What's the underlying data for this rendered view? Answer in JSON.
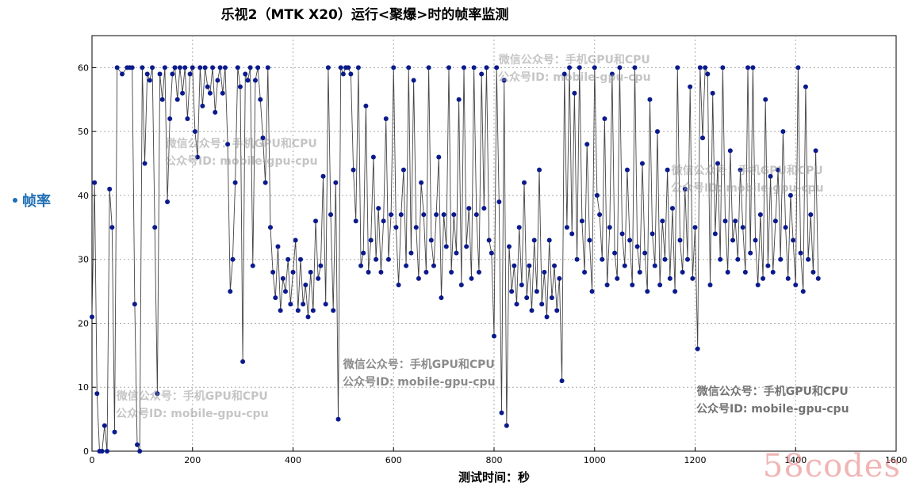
{
  "chart_data": {
    "type": "line",
    "title": "乐视2（MTK X20）运行<聚爆>时的帧率监测",
    "xlabel": "测试时间：秒",
    "legend": {
      "label": "帧率",
      "placement": "left"
    },
    "xlim": [
      0,
      1600
    ],
    "ylim": [
      0,
      65
    ],
    "xticks": [
      0,
      200,
      400,
      600,
      800,
      1000,
      1200,
      1400,
      1600
    ],
    "yticks": [
      0,
      10,
      20,
      30,
      40,
      50,
      60
    ],
    "grid": true,
    "marker": "circle",
    "line_color": "#444444",
    "marker_color": "#0a1a8c",
    "series": [
      {
        "name": "帧率",
        "x": [
          0,
          5,
          10,
          15,
          20,
          25,
          30,
          35,
          40,
          45,
          50,
          60,
          70,
          75,
          80,
          85,
          90,
          95,
          100,
          105,
          110,
          115,
          120,
          125,
          130,
          135,
          140,
          145,
          150,
          155,
          160,
          165,
          170,
          175,
          180,
          185,
          190,
          195,
          200,
          205,
          210,
          215,
          220,
          225,
          230,
          235,
          240,
          245,
          250,
          255,
          260,
          265,
          270,
          275,
          280,
          285,
          290,
          295,
          300,
          305,
          310,
          315,
          320,
          325,
          330,
          335,
          340,
          345,
          350,
          355,
          360,
          365,
          370,
          375,
          380,
          385,
          390,
          395,
          400,
          405,
          410,
          415,
          420,
          425,
          430,
          435,
          440,
          445,
          450,
          455,
          460,
          465,
          470,
          475,
          480,
          485,
          490,
          495,
          500,
          505,
          510,
          515,
          520,
          525,
          530,
          535,
          540,
          545,
          550,
          555,
          560,
          565,
          570,
          575,
          580,
          585,
          590,
          595,
          600,
          605,
          610,
          615,
          620,
          625,
          630,
          635,
          640,
          645,
          650,
          655,
          660,
          665,
          670,
          675,
          680,
          685,
          690,
          695,
          700,
          705,
          710,
          715,
          720,
          725,
          730,
          735,
          740,
          745,
          750,
          755,
          760,
          765,
          770,
          775,
          780,
          785,
          790,
          795,
          800,
          805,
          810,
          815,
          820,
          825,
          830,
          835,
          840,
          845,
          850,
          855,
          860,
          865,
          870,
          875,
          880,
          885,
          890,
          895,
          900,
          905,
          910,
          915,
          920,
          925,
          930,
          935,
          940,
          945,
          950,
          955,
          960,
          965,
          970,
          975,
          980,
          985,
          990,
          995,
          1000,
          1005,
          1010,
          1015,
          1020,
          1025,
          1030,
          1035,
          1040,
          1045,
          1050,
          1055,
          1060,
          1065,
          1070,
          1075,
          1080,
          1085,
          1090,
          1095,
          1100,
          1105,
          1110,
          1115,
          1120,
          1125,
          1130,
          1135,
          1140,
          1145,
          1150,
          1155,
          1160,
          1165,
          1170,
          1175,
          1180,
          1185,
          1190,
          1195,
          1200,
          1205,
          1210,
          1215,
          1220,
          1225,
          1230,
          1235,
          1240,
          1245,
          1250,
          1255,
          1260,
          1265,
          1270,
          1275,
          1280,
          1285,
          1290,
          1295,
          1300,
          1305,
          1310,
          1315,
          1320,
          1325,
          1330,
          1335,
          1340,
          1345,
          1350,
          1355,
          1360,
          1365,
          1370,
          1375,
          1380,
          1385,
          1390,
          1395,
          1400,
          1405,
          1410,
          1415,
          1420,
          1425,
          1430,
          1435,
          1440,
          1445
        ],
        "y": [
          21,
          42,
          9,
          0,
          0,
          4,
          0,
          41,
          35,
          3,
          60,
          59,
          60,
          60,
          60,
          23,
          1,
          0,
          60,
          45,
          59,
          58,
          60,
          35,
          9,
          59,
          55,
          60,
          39,
          52,
          59,
          60,
          55,
          60,
          56,
          60,
          52,
          59,
          60,
          50,
          46,
          60,
          54,
          60,
          57,
          56,
          60,
          53,
          58,
          60,
          56,
          60,
          48,
          25,
          30,
          42,
          60,
          57,
          14,
          59,
          58,
          60,
          29,
          58,
          60,
          55,
          49,
          42,
          60,
          35,
          28,
          24,
          32,
          22,
          27,
          25,
          30,
          23,
          28,
          33,
          22,
          30,
          23,
          26,
          21,
          28,
          22,
          36,
          27,
          29,
          43,
          23,
          60,
          37,
          22,
          42,
          5,
          60,
          59,
          60,
          60,
          59,
          44,
          36,
          60,
          29,
          31,
          54,
          28,
          33,
          46,
          30,
          38,
          28,
          36,
          52,
          30,
          37,
          60,
          35,
          26,
          37,
          44,
          29,
          60,
          31,
          58,
          35,
          27,
          42,
          37,
          28,
          60,
          33,
          29,
          37,
          46,
          24,
          37,
          32,
          60,
          28,
          37,
          31,
          55,
          26,
          60,
          32,
          38,
          27,
          60,
          37,
          28,
          59,
          38,
          60,
          33,
          31,
          18,
          60,
          39,
          6,
          58,
          4,
          32,
          25,
          29,
          23,
          35,
          26,
          42,
          24,
          29,
          22,
          33,
          25,
          44,
          23,
          28,
          21,
          33,
          24,
          29,
          22,
          27,
          11,
          59,
          35,
          60,
          34,
          56,
          30,
          60,
          36,
          28,
          48,
          33,
          25,
          60,
          40,
          37,
          30,
          52,
          26,
          35,
          59,
          31,
          27,
          60,
          34,
          29,
          44,
          33,
          26,
          60,
          32,
          28,
          45,
          31,
          25,
          55,
          34,
          29,
          50,
          26,
          36,
          30,
          44,
          27,
          38,
          25,
          60,
          33,
          28,
          41,
          30,
          57,
          27,
          35,
          16,
          60,
          49,
          60,
          59,
          26,
          56,
          34,
          45,
          30,
          60,
          36,
          28,
          47,
          33,
          36,
          30,
          44,
          35,
          28,
          60,
          31,
          60,
          33,
          26,
          37,
          27,
          55,
          29,
          43,
          28,
          36,
          44,
          30,
          50,
          35,
          27,
          40,
          33,
          26,
          60,
          31,
          25,
          57,
          30,
          37,
          28,
          47,
          27
        ]
      }
    ],
    "watermarks": [
      {
        "line1": "微信公众号：手机GPU和CPU",
        "line2": "公众号ID: mobile-gpu-cpu"
      },
      {
        "line1": "微信公众号：手机GPU和CPU",
        "line2": "公众号ID: mobile-gpu-cpu"
      },
      {
        "line1": "微信公众号：手机GPU和CPU",
        "line2": "公众号ID: mobile-gpu-cpu"
      },
      {
        "line1": "微信公众号：手机GPU和CPU",
        "line2": "公众号ID: mobile-gpu-cpu"
      },
      {
        "line1": "微信公众号：手机GPU和CPU",
        "line2": "公众号ID: mobile-gpu-cpu"
      },
      {
        "line1": "微信公众号：手机GPU和CPU",
        "line2": "公众号ID: mobile-gpu-cpu"
      }
    ],
    "site_mark": "58codes"
  }
}
